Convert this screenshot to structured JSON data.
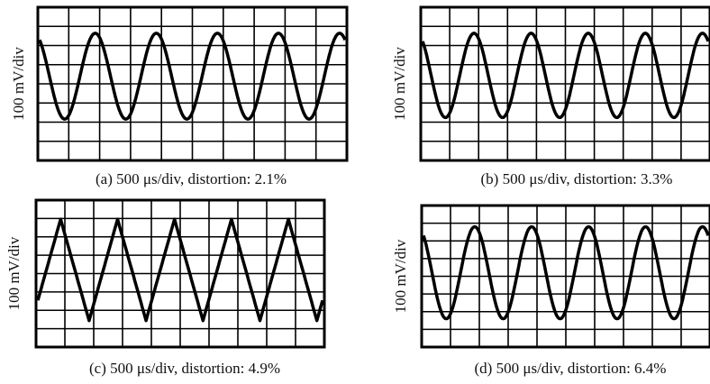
{
  "panels": [
    {
      "y_label": "100 mV/div",
      "caption": "(a) 500 μs/div, distortion: 2.1%"
    },
    {
      "y_label": "100 mV/div",
      "caption": "(b) 500 μs/div, distortion: 3.3%"
    },
    {
      "y_label": "100 mV/div",
      "caption": "(c) 500 μs/div, distortion: 4.9%"
    },
    {
      "y_label": "100 mV/div",
      "caption": "(d) 500 μs/div, distortion: 6.4%"
    }
  ]
}
